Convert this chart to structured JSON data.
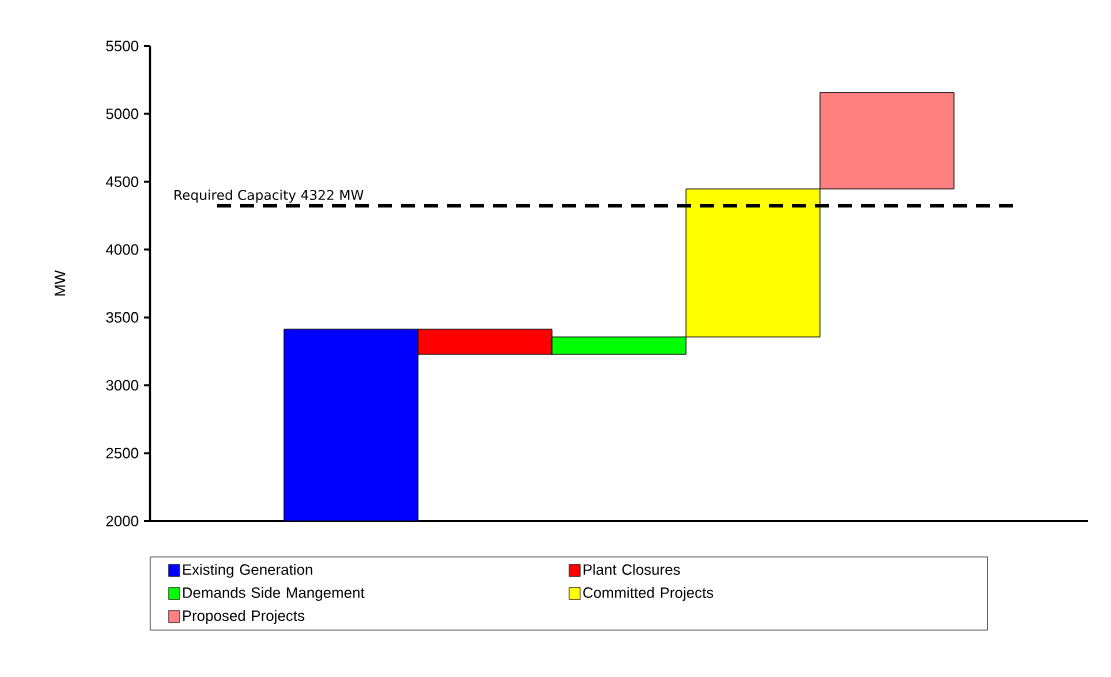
{
  "chart_data": {
    "type": "bar",
    "ylabel": "MW",
    "categories": [
      null,
      null,
      null,
      null,
      null,
      null,
      null
    ],
    "series": [
      {
        "name": "Existing Generation",
        "color": "#0000ff",
        "values": [
          null,
          1413,
          null,
          null,
          null,
          null,
          null
        ],
        "base": [
          null,
          2000,
          null,
          null,
          null,
          null,
          null
        ]
      },
      {
        "name": "Plant Closures",
        "color": "#ff0000",
        "values": [
          null,
          null,
          -185,
          null,
          null,
          null,
          null
        ],
        "base": [
          null,
          null,
          3413,
          null,
          null,
          null,
          null
        ]
      },
      {
        "name": "Demands Side Mangement",
        "color": "#00ff00",
        "values": [
          null,
          null,
          null,
          128,
          null,
          null,
          null
        ],
        "base": [
          null,
          null,
          null,
          3228,
          null,
          null,
          null
        ]
      },
      {
        "name": "Committed Projects",
        "color": "#ffff00",
        "values": [
          null,
          null,
          null,
          null,
          1091,
          null,
          null
        ],
        "base": [
          null,
          null,
          null,
          null,
          3356,
          null,
          null
        ]
      },
      {
        "name": "Proposed Projects",
        "color": "#ff8080",
        "values": [
          null,
          null,
          null,
          null,
          null,
          710,
          null
        ],
        "base": [
          null,
          null,
          null,
          null,
          null,
          4447,
          null
        ]
      }
    ],
    "ylim": [
      2000,
      5500
    ],
    "yticks": [
      2000,
      2500,
      3000,
      3500,
      4000,
      4500,
      5000,
      5500
    ],
    "ref_lines": [
      {
        "axis": "y",
        "value": 4322,
        "label": "Required Capacity 4322 MW",
        "line_style": "dashed",
        "color": "#000000"
      }
    ],
    "grid": false,
    "legend": "bottom",
    "tick_labels": "y"
  }
}
